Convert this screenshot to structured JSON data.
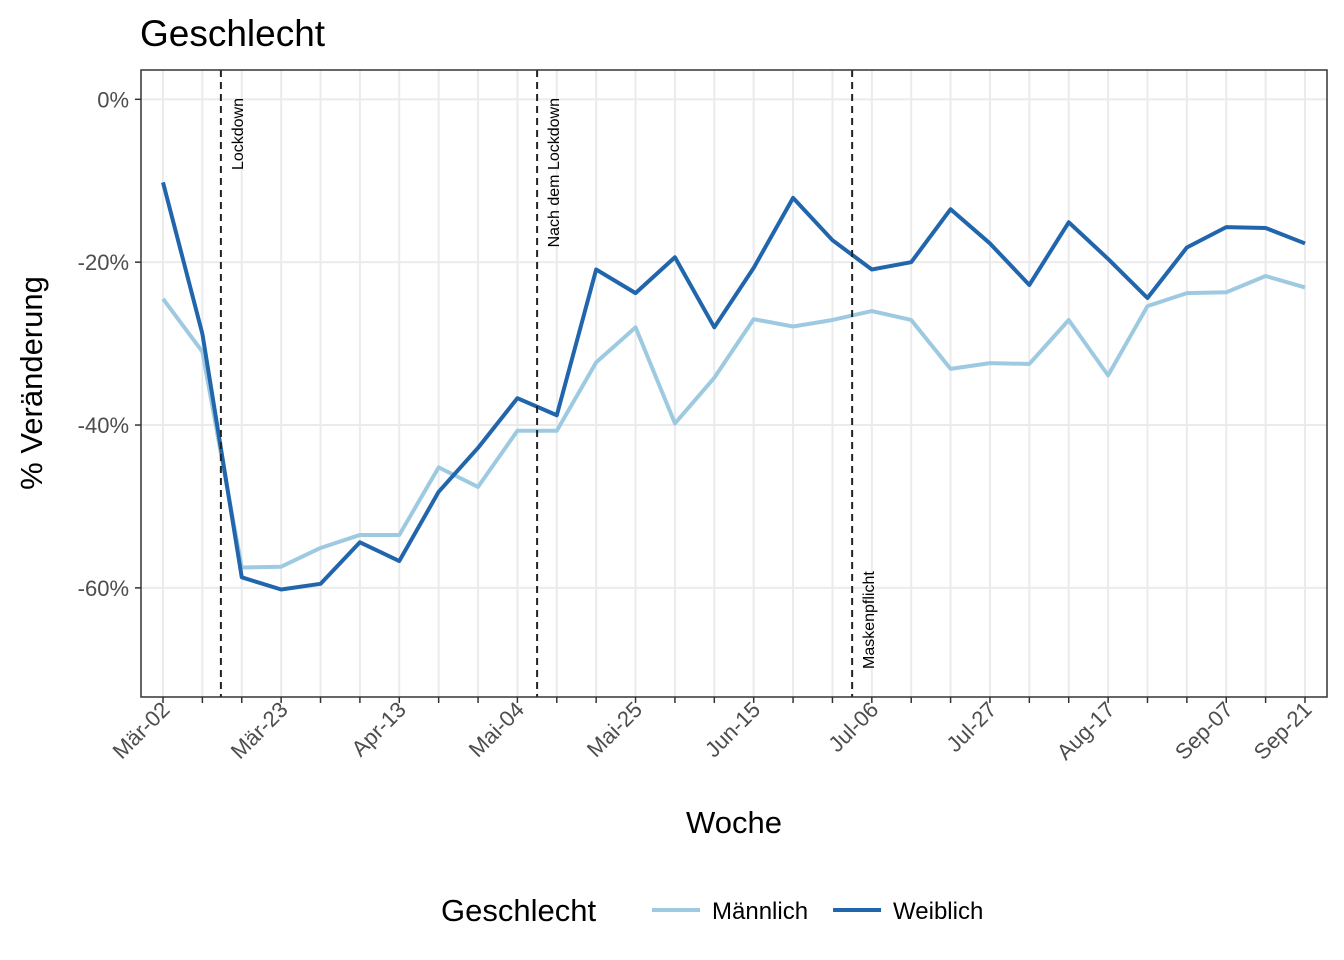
{
  "chart_data": {
    "type": "line",
    "title": "Geschlecht",
    "x_label": "Woche",
    "y_label": "% Veränderung",
    "legend_title": "Geschlecht",
    "legend_position": "bottom",
    "grid": true,
    "categories": [
      "Mär-02",
      null,
      null,
      "Mär-23",
      null,
      null,
      "Apr-13",
      null,
      null,
      "Mai-04",
      null,
      null,
      "Mai-25",
      null,
      null,
      "Jun-15",
      null,
      null,
      "Jul-06",
      null,
      null,
      "Jul-27",
      null,
      null,
      "Aug-17",
      null,
      null,
      "Sep-07",
      null,
      "Sep-21"
    ],
    "ylim": [
      -73.4,
      3.6
    ],
    "yticks": [
      {
        "value": 0,
        "label": "0%"
      },
      {
        "value": -20,
        "label": "-20%"
      },
      {
        "value": -40,
        "label": "-40%"
      },
      {
        "value": -60,
        "label": "-60%"
      }
    ],
    "series": [
      {
        "name": "Männlich",
        "color": "#9ecae1",
        "values": [
          -24.5,
          -31.0,
          -57.5,
          -57.4,
          -55.1,
          -53.5,
          -53.5,
          -45.2,
          -47.6,
          -40.7,
          -40.7,
          -32.3,
          -28.0,
          -39.8,
          -34.2,
          -27.0,
          -27.9,
          -27.1,
          -26.0,
          -27.1,
          -33.1,
          -32.4,
          -32.5,
          -27.1,
          -33.9,
          -25.4,
          -23.8,
          -23.7,
          -21.7,
          -23.1
        ]
      },
      {
        "name": "Weiblich",
        "color": "#2166ac",
        "values": [
          -10.2,
          -28.8,
          -58.7,
          -60.2,
          -59.5,
          -54.4,
          -56.7,
          -48.2,
          -42.8,
          -36.7,
          -38.8,
          -20.9,
          -23.8,
          -19.4,
          -28.0,
          -20.7,
          -12.1,
          -17.3,
          -20.9,
          -20.0,
          -13.5,
          -17.7,
          -22.8,
          -15.1,
          -19.6,
          -24.4,
          -18.2,
          -15.7,
          -15.8,
          -17.7
        ]
      }
    ],
    "annotations": [
      {
        "x": 1.47,
        "text": "Lockdown"
      },
      {
        "x": 9.5,
        "text": "Nach dem Lockdown"
      },
      {
        "x": 17.5,
        "text": "Maskenpflicht"
      }
    ]
  }
}
